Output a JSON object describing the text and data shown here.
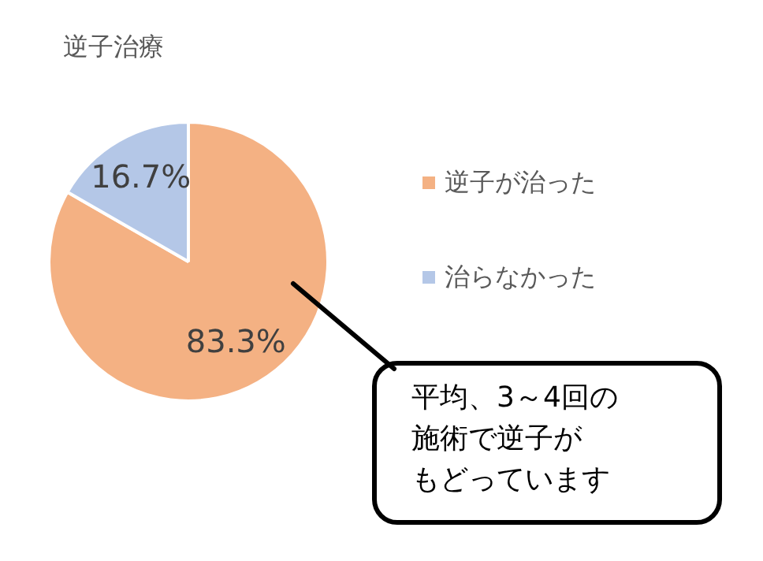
{
  "chart_data": {
    "type": "pie",
    "title": "逆子治療",
    "categories": [
      "逆子が治った",
      "治らなかった"
    ],
    "values": [
      83.3,
      16.7
    ],
    "colors": [
      "#f4b183",
      "#b4c7e7"
    ],
    "value_labels": [
      "83.3%",
      "16.7%"
    ],
    "legend": "right",
    "annotations": [
      "平均、3～4回の",
      "施術で逆子が",
      "もどっています"
    ]
  }
}
